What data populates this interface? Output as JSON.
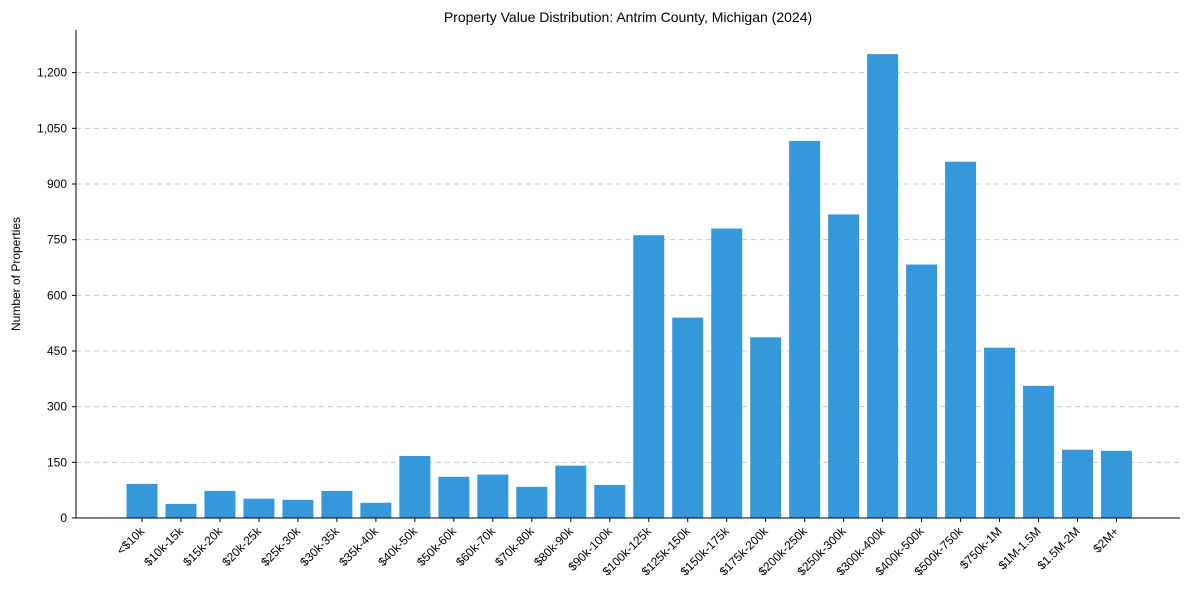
{
  "chart_data": {
    "type": "bar",
    "title": "Property Value Distribution: Antrim County, Michigan (2024)",
    "xlabel": "",
    "ylabel": "Number of Properties",
    "ylim": [
      0,
      1315
    ],
    "yticks": [
      0,
      150,
      300,
      450,
      600,
      750,
      900,
      1050,
      1200
    ],
    "ytick_labels": [
      "0",
      "150",
      "300",
      "450",
      "600",
      "750",
      "900",
      "1,050",
      "1,200"
    ],
    "grid": "y-dashed",
    "bar_color": "#3498db",
    "categories": [
      "<$10k",
      "$10k-15k",
      "$15k-20k",
      "$20k-25k",
      "$25k-30k",
      "$30k-35k",
      "$35k-40k",
      "$40k-50k",
      "$50k-60k",
      "$60k-70k",
      "$70k-80k",
      "$80k-90k",
      "$90k-100k",
      "$100k-125k",
      "$125k-150k",
      "$150k-175k",
      "$175k-200k",
      "$200k-250k",
      "$250k-300k",
      "$300k-400k",
      "$400k-500k",
      "$500k-750k",
      "$750k-1M",
      "$1M-1.5M",
      "$1.5M-2M",
      "$2M+"
    ],
    "values": [
      92,
      38,
      73,
      52,
      49,
      73,
      41,
      167,
      111,
      117,
      84,
      141,
      89,
      762,
      540,
      780,
      487,
      1016,
      818,
      1250,
      683,
      960,
      459,
      356,
      184,
      181
    ]
  }
}
